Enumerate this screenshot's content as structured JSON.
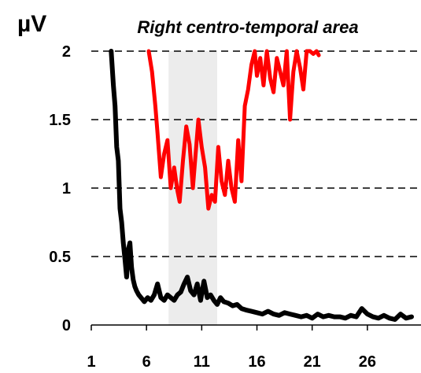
{
  "chart_data": {
    "type": "line",
    "title": "Right centro-temporal area",
    "ylabel": "µV",
    "xlabel": "",
    "xlim": [
      1,
      30
    ],
    "ylim": [
      0,
      2
    ],
    "x_ticks": [
      1,
      6,
      11,
      16,
      21,
      26
    ],
    "y_ticks": [
      0,
      0.5,
      1,
      1.5,
      2
    ],
    "y_tick_labels": [
      "0",
      "0.5",
      "1",
      "1.5",
      "2"
    ],
    "grid": "horizontal dashed",
    "shaded_band": [
      8.0,
      12.4
    ],
    "colors": {
      "band": "#ececec",
      "grid": "#000000"
    },
    "series": [
      {
        "color": "#ff0000",
        "x": [
          6.2,
          6.5,
          6.8,
          7.0,
          7.3,
          7.6,
          7.9,
          8.2,
          8.5,
          8.8,
          9.0,
          9.3,
          9.6,
          9.9,
          10.2,
          10.4,
          10.7,
          11.0,
          11.3,
          11.6,
          11.9,
          12.2,
          12.5,
          12.8,
          13.1,
          13.4,
          13.7,
          14.0,
          14.3,
          14.6,
          14.9,
          15.2,
          15.5,
          15.8,
          16.0,
          16.3,
          16.6,
          16.9,
          17.2,
          17.5,
          17.8,
          18.1,
          18.4,
          18.7,
          19.0,
          19.3,
          19.6,
          19.9,
          20.2,
          20.5,
          20.8,
          21.1,
          21.4,
          21.6
        ],
        "y": [
          2.0,
          1.85,
          1.6,
          1.4,
          1.08,
          1.25,
          1.35,
          1.0,
          1.15,
          0.98,
          0.9,
          1.2,
          1.45,
          1.32,
          1.0,
          1.2,
          1.5,
          1.3,
          1.15,
          0.85,
          0.95,
          0.9,
          1.3,
          1.05,
          0.95,
          1.2,
          1.0,
          0.9,
          1.35,
          1.05,
          1.6,
          1.72,
          1.9,
          2.0,
          1.82,
          1.95,
          1.75,
          2.0,
          1.8,
          1.7,
          1.95,
          1.85,
          1.75,
          2.0,
          1.5,
          1.85,
          2.0,
          1.88,
          1.72,
          2.0,
          2.0,
          1.98,
          2.0,
          1.97
        ]
      },
      {
        "color": "#000000",
        "x": [
          2.8,
          3.0,
          3.15,
          3.3,
          3.45,
          3.6,
          3.75,
          3.9,
          4.05,
          4.2,
          4.35,
          4.5,
          4.65,
          4.8,
          4.95,
          5.1,
          5.3,
          5.5,
          5.8,
          6.1,
          6.4,
          6.7,
          7.0,
          7.3,
          7.6,
          7.9,
          8.2,
          8.5,
          8.8,
          9.1,
          9.4,
          9.7,
          10.0,
          10.3,
          10.6,
          10.9,
          11.2,
          11.5,
          11.8,
          12.1,
          12.4,
          12.7,
          13.0,
          13.4,
          13.8,
          14.2,
          14.6,
          15.0,
          15.5,
          16.0,
          16.5,
          17.0,
          17.5,
          18.0,
          18.5,
          19.0,
          19.5,
          20.0,
          20.5,
          21.0,
          21.5,
          22.0,
          22.5,
          23.0,
          23.5,
          24.0,
          24.5,
          25.0,
          25.5,
          26.0,
          26.5,
          27.0,
          27.5,
          28.0,
          28.5,
          29.0,
          29.5,
          30.0
        ],
        "y": [
          2.0,
          1.75,
          1.6,
          1.3,
          1.2,
          0.85,
          0.75,
          0.6,
          0.48,
          0.35,
          0.55,
          0.6,
          0.42,
          0.33,
          0.28,
          0.25,
          0.22,
          0.2,
          0.17,
          0.2,
          0.18,
          0.22,
          0.3,
          0.2,
          0.18,
          0.22,
          0.2,
          0.18,
          0.22,
          0.24,
          0.3,
          0.35,
          0.25,
          0.22,
          0.3,
          0.18,
          0.32,
          0.2,
          0.22,
          0.18,
          0.15,
          0.2,
          0.17,
          0.16,
          0.14,
          0.15,
          0.12,
          0.11,
          0.1,
          0.09,
          0.08,
          0.1,
          0.08,
          0.07,
          0.09,
          0.08,
          0.07,
          0.06,
          0.07,
          0.05,
          0.08,
          0.06,
          0.07,
          0.06,
          0.06,
          0.05,
          0.07,
          0.06,
          0.12,
          0.08,
          0.06,
          0.05,
          0.07,
          0.05,
          0.04,
          0.08,
          0.05,
          0.06
        ]
      }
    ]
  }
}
